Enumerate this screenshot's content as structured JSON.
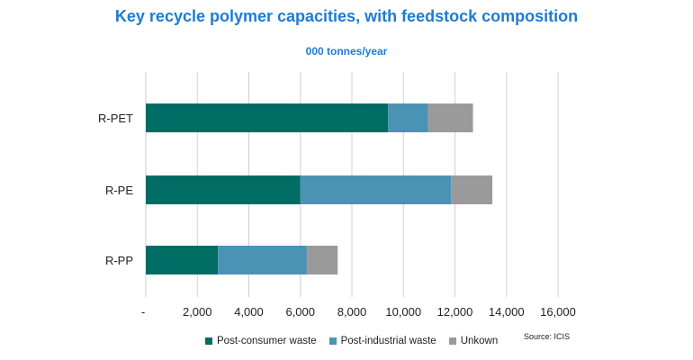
{
  "chart_data": {
    "type": "bar",
    "orientation": "horizontal",
    "stacked": true,
    "title": "Key recycle polymer capacities, with feedstock composition",
    "subtitle": "000 tonnes/year",
    "categories": [
      "R-PET",
      "R-PE",
      "R-PP"
    ],
    "series": [
      {
        "name": "Post-consumer waste",
        "color": "#006d64",
        "values": [
          9400,
          6000,
          2800
        ]
      },
      {
        "name": "Post-industrial waste",
        "color": "#4b93b4",
        "values": [
          1550,
          5850,
          3450
        ]
      },
      {
        "name": "Unkown",
        "color": "#9a9a9a",
        "values": [
          1750,
          1600,
          1200
        ]
      }
    ],
    "xlim": [
      0,
      16000
    ],
    "xticks": [
      "-",
      "2,000",
      "4,000",
      "6,000",
      "8,000",
      "10,000",
      "12,000",
      "14,000",
      "16,000"
    ],
    "grid": true,
    "legend": "bottom",
    "source": "Source: ICIS"
  }
}
